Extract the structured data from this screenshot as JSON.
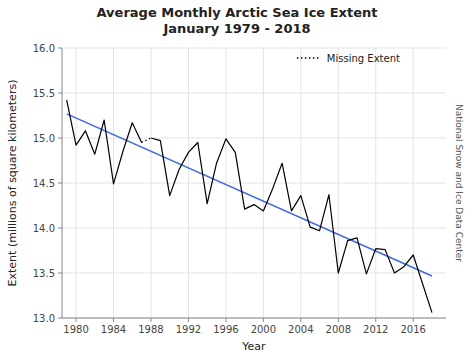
{
  "chart_data": {
    "type": "line",
    "title": "Average Monthly Arctic Sea Ice Extent\nJanuary 1979 - 2018",
    "x_label": "Year",
    "y_label": "Extent (millions of square kilometers)",
    "annotations": [
      {
        "text": "National Snow and Ice Data Center"
      }
    ],
    "x": [
      1979,
      1980,
      1981,
      1982,
      1983,
      1984,
      1985,
      1986,
      1987,
      1988,
      1989,
      1990,
      1991,
      1992,
      1993,
      1994,
      1995,
      1996,
      1997,
      1998,
      1999,
      2000,
      2001,
      2002,
      2003,
      2004,
      2005,
      2006,
      2007,
      2008,
      2009,
      2010,
      2011,
      2012,
      2013,
      2014,
      2015,
      2016,
      2017,
      2018
    ],
    "series": [
      {
        "color": "#000000",
        "line_style": "solid",
        "values": [
          15.42,
          14.92,
          15.08,
          14.82,
          15.2,
          14.49,
          14.85,
          15.17,
          14.95,
          15.0,
          14.97,
          14.36,
          14.65,
          14.84,
          14.95,
          14.27,
          14.72,
          14.99,
          14.84,
          14.21,
          14.26,
          14.19,
          14.44,
          14.72,
          14.19,
          14.36,
          14.01,
          13.97,
          14.37,
          13.5,
          13.86,
          13.89,
          13.49,
          13.77,
          13.76,
          13.5,
          13.57,
          13.7,
          13.38,
          13.06
        ]
      },
      {
        "name": "Missing Extent",
        "color": "#000000",
        "line_style": "dotted",
        "x": [
          1987,
          1988
        ],
        "values": [
          14.95,
          15.0
        ]
      },
      {
        "color": "#4169e1",
        "line_style": "solid",
        "x": [
          1979,
          2018
        ],
        "values": [
          15.2682,
          13.4663
        ]
      }
    ],
    "xlim": [
      1978.5,
      2019.5
    ],
    "ylim": [
      13.0,
      16.0
    ],
    "xticks": [
      1980,
      1984,
      1988,
      1992,
      1996,
      2000,
      2004,
      2008,
      2012,
      2016
    ],
    "yticks": [
      {
        "value": 13.0,
        "label": "13.0"
      },
      13.5,
      {
        "value": 14.0,
        "label": "14.0"
      },
      14.5,
      {
        "value": 15.0,
        "label": "15.0"
      },
      15.5,
      {
        "value": 16.0,
        "label": "16.0"
      }
    ],
    "grid": true,
    "legend": "upper right"
  }
}
